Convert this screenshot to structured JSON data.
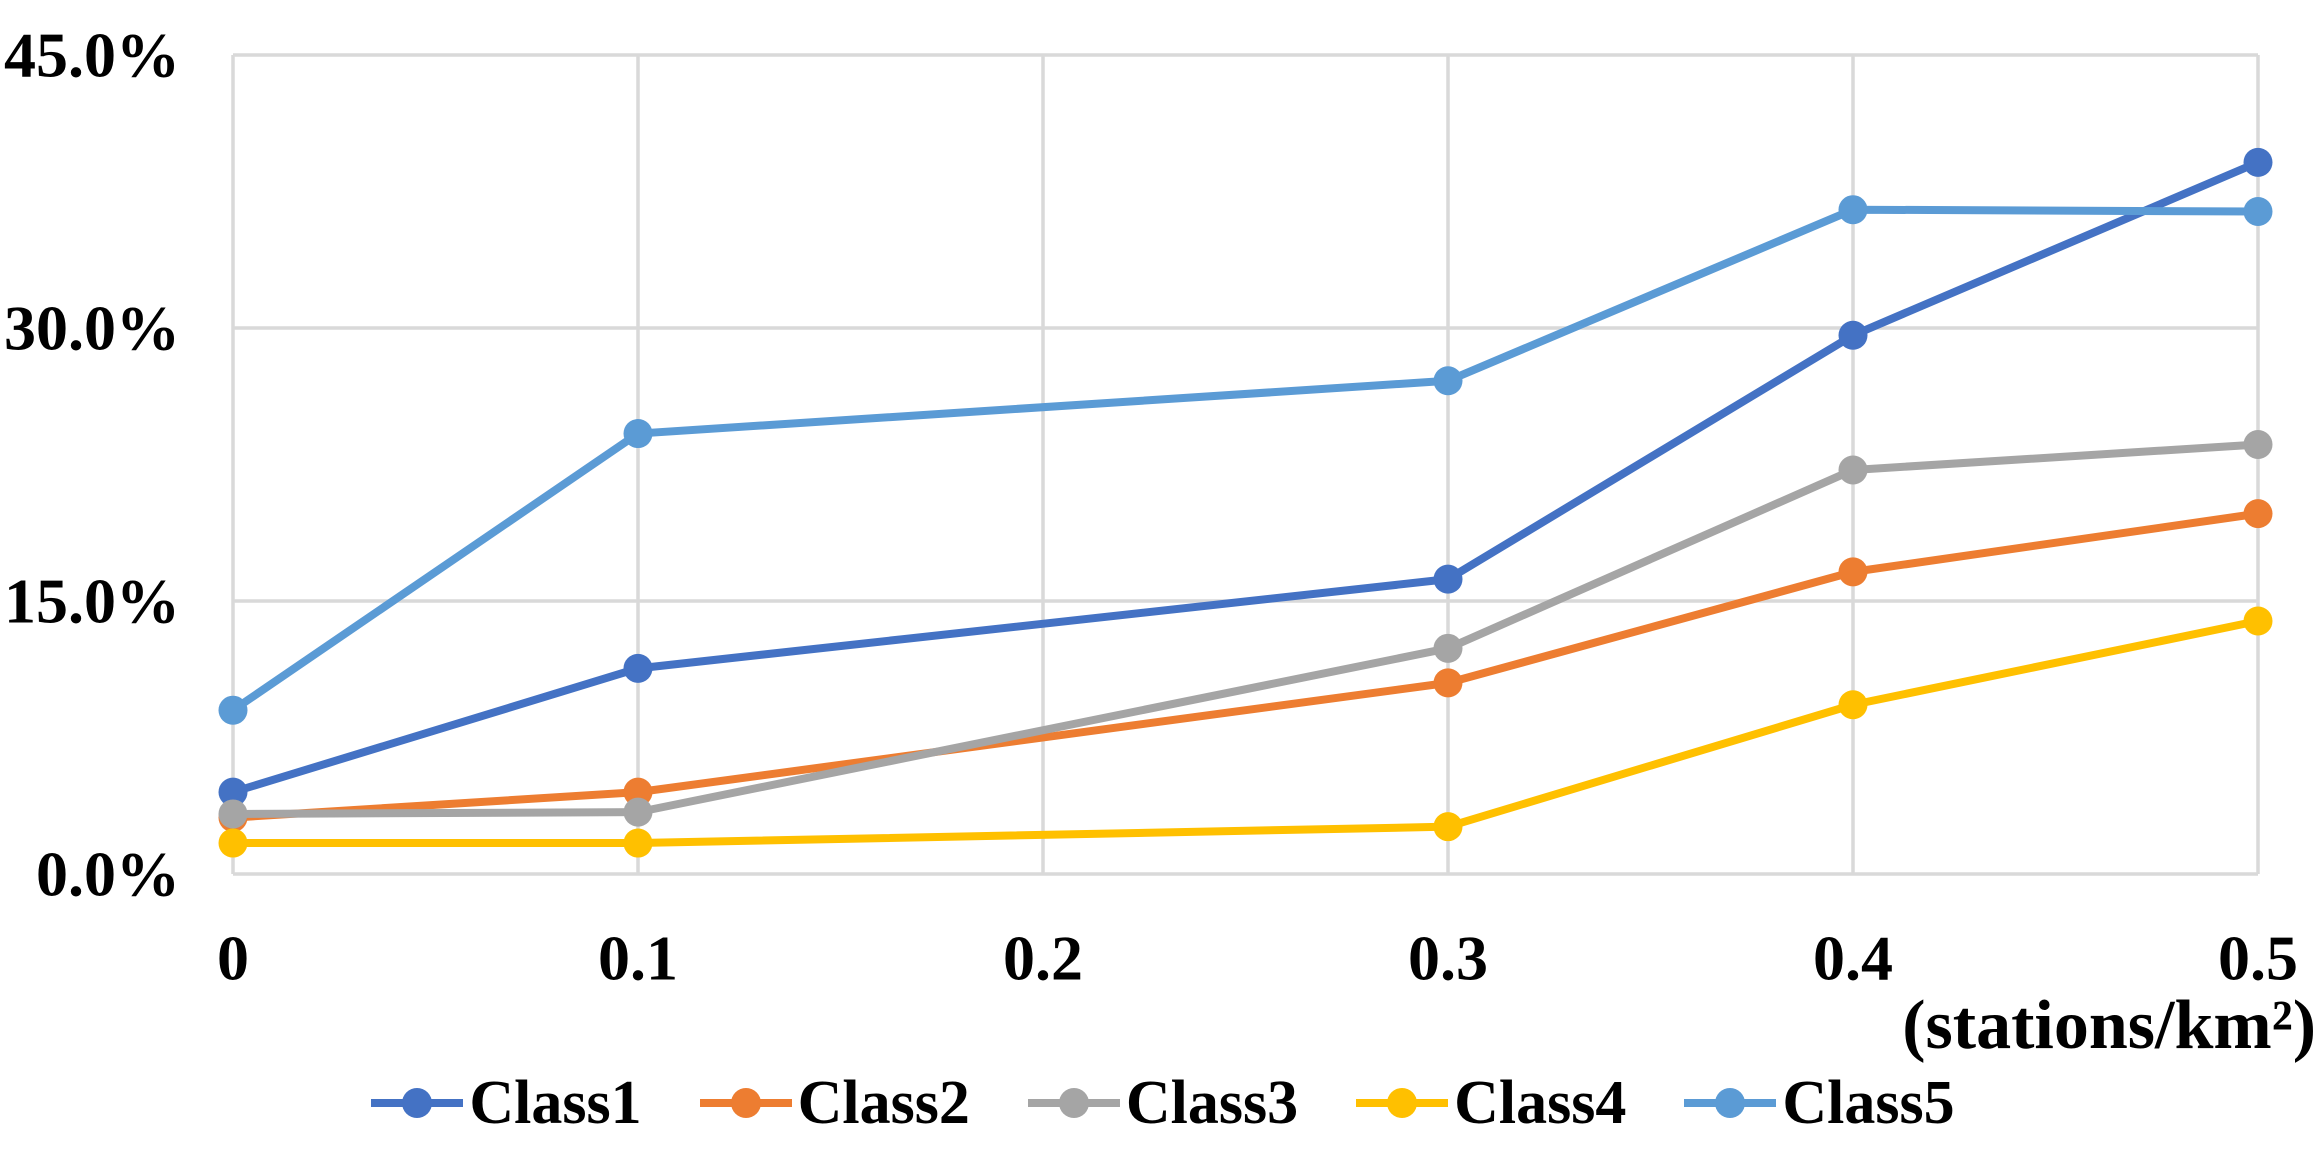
{
  "chart_data": {
    "type": "line",
    "title": "",
    "xlabel": "(stations/km²)",
    "ylabel": "",
    "xlim": [
      0,
      0.5
    ],
    "ylim": [
      0,
      45
    ],
    "x_ticks": [
      0,
      0.1,
      0.2,
      0.3,
      0.4,
      0.5
    ],
    "x_tick_labels": [
      "0",
      "0.1",
      "0.2",
      "0.3",
      "0.4",
      "0.5"
    ],
    "y_ticks": [
      0,
      15,
      30,
      45
    ],
    "y_tick_labels": [
      "0.0%",
      "15.0%",
      "30.0%",
      "45.0%"
    ],
    "grid": true,
    "legend_position": "bottom",
    "x": [
      0,
      0.1,
      0.3,
      0.4,
      0.5
    ],
    "series": [
      {
        "name": "Class1",
        "color": "#4472C4",
        "values": [
          4.5,
          11.3,
          16.2,
          29.6,
          39.1
        ]
      },
      {
        "name": "Class2",
        "color": "#ED7D31",
        "values": [
          3.1,
          4.5,
          10.5,
          16.6,
          19.8
        ]
      },
      {
        "name": "Class3",
        "color": "#A5A5A5",
        "values": [
          3.3,
          3.4,
          12.4,
          22.2,
          23.6
        ]
      },
      {
        "name": "Class4",
        "color": "#FFC000",
        "values": [
          1.7,
          1.7,
          2.6,
          9.3,
          13.9
        ]
      },
      {
        "name": "Class5",
        "color": "#5B9BD5",
        "values": [
          9.0,
          24.2,
          27.1,
          36.5,
          36.4
        ]
      }
    ],
    "gridline_color": "#D9D9D9",
    "background_color": "#FFFFFF"
  }
}
